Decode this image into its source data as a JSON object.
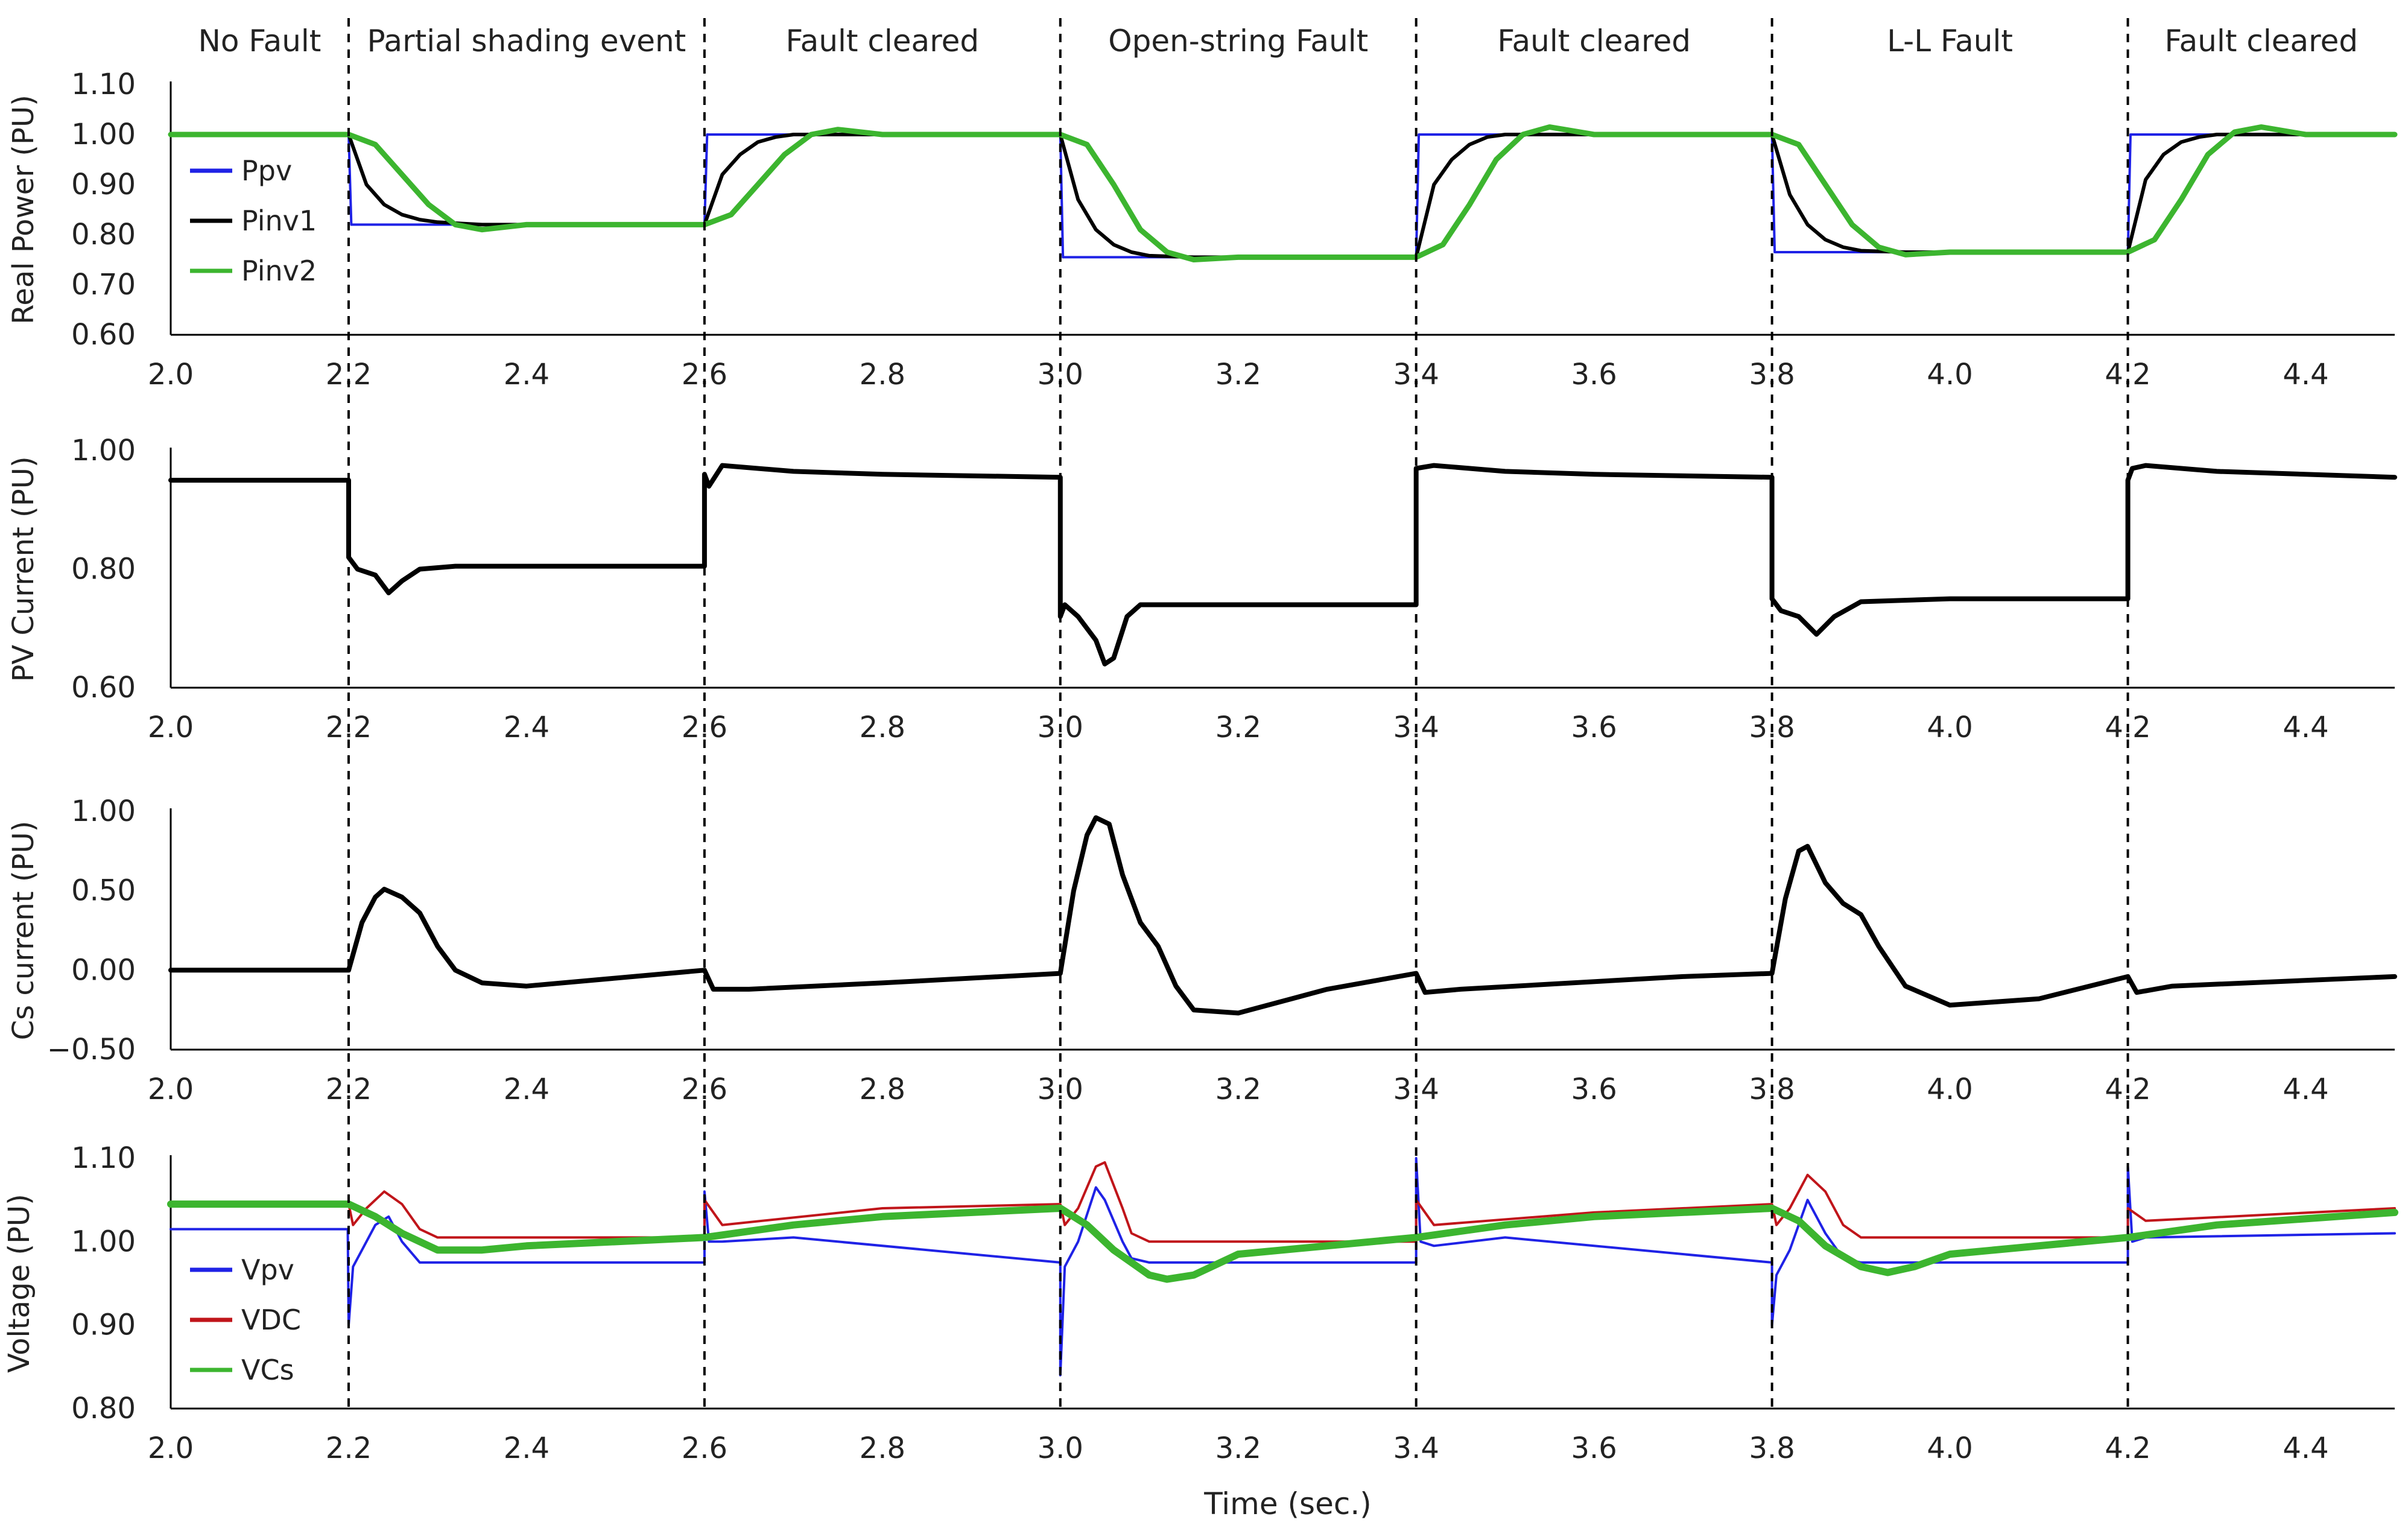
{
  "chart_data": {
    "type": "line",
    "xlabel": "Time (sec.)",
    "xlim": [
      2.0,
      4.5
    ],
    "xticks": [
      "2.0",
      "2.2",
      "2.4",
      "2.6",
      "2.8",
      "3.0",
      "3.2",
      "3.4",
      "3.6",
      "3.8",
      "4.0",
      "4.2",
      "4.4"
    ],
    "event_times": [
      2.2,
      2.6,
      3.0,
      3.4,
      3.8,
      4.2
    ],
    "events": [
      {
        "label": "No Fault",
        "start": 2.0,
        "end": 2.2
      },
      {
        "label": "Partial shading event",
        "start": 2.2,
        "end": 2.6
      },
      {
        "label": "Fault cleared",
        "start": 2.6,
        "end": 3.0
      },
      {
        "label": "Open-string Fault",
        "start": 3.0,
        "end": 3.4
      },
      {
        "label": "Fault cleared",
        "start": 3.4,
        "end": 3.8
      },
      {
        "label": "L-L Fault",
        "start": 3.8,
        "end": 4.2
      },
      {
        "label": "Fault cleared",
        "start": 4.2,
        "end": 4.5
      }
    ],
    "panels": [
      {
        "id": "power",
        "ylabel": "Real Power  (PU)",
        "ylim": [
          0.6,
          1.1
        ],
        "yticks": [
          "0.60",
          "0.70",
          "0.80",
          "0.90",
          "1.00",
          "1.10"
        ],
        "legend_position": "top-left",
        "series": [
          {
            "name": "Ppv",
            "color": "#1f22e6",
            "x": [
              2.0,
              2.2,
              2.203,
              2.6,
              2.603,
              3.0,
              3.003,
              3.4,
              3.403,
              3.8,
              3.803,
              4.2,
              4.203,
              4.5
            ],
            "y": [
              1.0,
              1.0,
              0.82,
              0.82,
              1.0,
              1.0,
              0.755,
              0.755,
              1.0,
              1.0,
              0.765,
              0.765,
              1.0,
              1.0
            ]
          },
          {
            "name": "Pinv1",
            "color": "#000000",
            "x": [
              2.0,
              2.2,
              2.22,
              2.24,
              2.26,
              2.28,
              2.3,
              2.35,
              2.6,
              2.62,
              2.64,
              2.66,
              2.68,
              2.7,
              2.75,
              3.0,
              3.02,
              3.04,
              3.06,
              3.08,
              3.1,
              3.15,
              3.4,
              3.42,
              3.44,
              3.46,
              3.48,
              3.5,
              3.55,
              3.8,
              3.82,
              3.84,
              3.86,
              3.88,
              3.9,
              3.95,
              4.2,
              4.22,
              4.24,
              4.26,
              4.28,
              4.3,
              4.35,
              4.5
            ],
            "y": [
              1.0,
              1.0,
              0.9,
              0.86,
              0.84,
              0.83,
              0.825,
              0.82,
              0.82,
              0.92,
              0.96,
              0.985,
              0.995,
              1.0,
              1.0,
              1.0,
              0.87,
              0.81,
              0.78,
              0.765,
              0.758,
              0.755,
              0.755,
              0.9,
              0.95,
              0.98,
              0.995,
              1.0,
              1.0,
              1.0,
              0.88,
              0.82,
              0.79,
              0.775,
              0.768,
              0.765,
              0.765,
              0.91,
              0.96,
              0.985,
              0.995,
              1.0,
              1.0,
              1.0
            ]
          },
          {
            "name": "Pinv2",
            "color": "#3cb52f",
            "x": [
              2.0,
              2.2,
              2.23,
              2.26,
              2.29,
              2.32,
              2.35,
              2.4,
              2.6,
              2.63,
              2.66,
              2.69,
              2.72,
              2.75,
              2.8,
              3.0,
              3.03,
              3.06,
              3.09,
              3.12,
              3.15,
              3.2,
              3.4,
              3.43,
              3.46,
              3.49,
              3.52,
              3.55,
              3.6,
              3.8,
              3.83,
              3.86,
              3.89,
              3.92,
              3.95,
              4.0,
              4.2,
              4.23,
              4.26,
              4.29,
              4.32,
              4.35,
              4.4,
              4.5
            ],
            "y": [
              1.0,
              1.0,
              0.98,
              0.92,
              0.86,
              0.82,
              0.81,
              0.82,
              0.82,
              0.84,
              0.9,
              0.96,
              1.0,
              1.01,
              1.0,
              1.0,
              0.98,
              0.9,
              0.81,
              0.765,
              0.75,
              0.755,
              0.755,
              0.78,
              0.86,
              0.95,
              1.0,
              1.015,
              1.0,
              1.0,
              0.98,
              0.9,
              0.82,
              0.775,
              0.76,
              0.765,
              0.765,
              0.79,
              0.87,
              0.96,
              1.005,
              1.015,
              1.0,
              1.0
            ]
          }
        ]
      },
      {
        "id": "pv_current",
        "ylabel": "PV Current  (PU)",
        "ylim": [
          0.6,
          1.0
        ],
        "yticks": [
          "0.60",
          "0.80",
          "1.00"
        ],
        "series": [
          {
            "name": "PV Current",
            "color": "#000000",
            "x": [
              2.0,
              2.2,
              2.2,
              2.21,
              2.23,
              2.245,
              2.26,
              2.28,
              2.32,
              2.6,
              2.6,
              2.605,
              2.62,
              2.7,
              2.8,
              3.0,
              3.0,
              3.005,
              3.02,
              3.04,
              3.05,
              3.06,
              3.075,
              3.09,
              3.2,
              3.4,
              3.4,
              3.42,
              3.5,
              3.6,
              3.8,
              3.8,
              3.81,
              3.83,
              3.85,
              3.87,
              3.9,
              4.0,
              4.2,
              4.2,
              4.205,
              4.22,
              4.3,
              4.5
            ],
            "y": [
              0.95,
              0.95,
              0.82,
              0.8,
              0.79,
              0.76,
              0.78,
              0.8,
              0.805,
              0.805,
              0.96,
              0.94,
              0.975,
              0.965,
              0.96,
              0.955,
              0.72,
              0.74,
              0.72,
              0.68,
              0.64,
              0.65,
              0.72,
              0.74,
              0.74,
              0.74,
              0.97,
              0.975,
              0.965,
              0.96,
              0.955,
              0.75,
              0.73,
              0.72,
              0.69,
              0.72,
              0.745,
              0.75,
              0.75,
              0.95,
              0.97,
              0.975,
              0.965,
              0.955
            ]
          }
        ]
      },
      {
        "id": "cs_current",
        "ylabel": "Cs current  (PU)",
        "ylim": [
          -0.5,
          1.0
        ],
        "yticks": [
          "−0.50",
          "0.00",
          "0.50",
          "1.00"
        ],
        "series": [
          {
            "name": "Cs current",
            "color": "#000000",
            "x": [
              2.0,
              2.2,
              2.215,
              2.23,
              2.24,
              2.26,
              2.28,
              2.3,
              2.32,
              2.35,
              2.4,
              2.5,
              2.6,
              2.61,
              2.65,
              2.8,
              3.0,
              3.015,
              3.03,
              3.04,
              3.055,
              3.07,
              3.09,
              3.11,
              3.13,
              3.15,
              3.2,
              3.3,
              3.4,
              3.41,
              3.45,
              3.7,
              3.8,
              3.815,
              3.83,
              3.84,
              3.86,
              3.88,
              3.9,
              3.92,
              3.95,
              4.0,
              4.1,
              4.2,
              4.21,
              4.25,
              4.5
            ],
            "y": [
              0.0,
              0.0,
              0.3,
              0.46,
              0.51,
              0.46,
              0.36,
              0.15,
              0.0,
              -0.08,
              -0.1,
              -0.05,
              0.0,
              -0.12,
              -0.12,
              -0.08,
              -0.02,
              0.5,
              0.85,
              0.96,
              0.92,
              0.6,
              0.3,
              0.15,
              -0.1,
              -0.25,
              -0.27,
              -0.12,
              -0.02,
              -0.14,
              -0.12,
              -0.04,
              -0.02,
              0.45,
              0.75,
              0.78,
              0.55,
              0.42,
              0.35,
              0.15,
              -0.1,
              -0.22,
              -0.18,
              -0.04,
              -0.14,
              -0.1,
              -0.04
            ]
          }
        ]
      },
      {
        "id": "voltage",
        "ylabel": "Voltage  (PU)",
        "ylim": [
          0.8,
          1.1
        ],
        "yticks": [
          "0.80",
          "0.90",
          "1.00",
          "1.10"
        ],
        "legend_position": "bottom-left",
        "series": [
          {
            "name": "Vpv",
            "color": "#1f22e6",
            "x": [
              2.0,
              2.199,
              2.2,
              2.205,
              2.215,
              2.23,
              2.245,
              2.26,
              2.28,
              2.6,
              2.6,
              2.605,
              2.62,
              2.7,
              3.0,
              3.0,
              3.005,
              3.02,
              3.04,
              3.05,
              3.07,
              3.08,
              3.1,
              3.4,
              3.4,
              3.405,
              3.42,
              3.5,
              3.8,
              3.8,
              3.805,
              3.82,
              3.84,
              3.86,
              3.88,
              3.9,
              4.2,
              4.2,
              4.205,
              4.22,
              4.5
            ],
            "y": [
              1.015,
              1.015,
              0.9,
              0.97,
              0.99,
              1.02,
              1.03,
              1.0,
              0.975,
              0.975,
              1.06,
              1.0,
              1.0,
              1.005,
              0.975,
              0.84,
              0.97,
              1.0,
              1.065,
              1.05,
              1.0,
              0.98,
              0.975,
              0.975,
              1.1,
              1.0,
              0.995,
              1.005,
              0.975,
              0.9,
              0.96,
              0.99,
              1.05,
              1.01,
              0.98,
              0.975,
              0.975,
              1.09,
              1.0,
              1.005,
              1.01
            ]
          },
          {
            "name": "VDC",
            "color": "#c0151a",
            "x": [
              2.0,
              2.2,
              2.205,
              2.22,
              2.24,
              2.26,
              2.28,
              2.3,
              2.6,
              2.6,
              2.62,
              2.8,
              3.0,
              3.005,
              3.02,
              3.04,
              3.05,
              3.07,
              3.08,
              3.1,
              3.4,
              3.4,
              3.42,
              3.6,
              3.8,
              3.805,
              3.82,
              3.84,
              3.86,
              3.88,
              3.9,
              4.2,
              4.2,
              4.22,
              4.5
            ],
            "y": [
              1.045,
              1.045,
              1.02,
              1.04,
              1.06,
              1.045,
              1.015,
              1.005,
              1.005,
              1.05,
              1.02,
              1.04,
              1.045,
              1.02,
              1.04,
              1.09,
              1.095,
              1.04,
              1.01,
              1.0,
              1.0,
              1.05,
              1.02,
              1.035,
              1.045,
              1.02,
              1.04,
              1.08,
              1.06,
              1.02,
              1.005,
              1.005,
              1.04,
              1.025,
              1.04
            ]
          },
          {
            "name": "VCs",
            "color": "#3cb52f",
            "x": [
              2.0,
              2.2,
              2.23,
              2.26,
              2.3,
              2.35,
              2.4,
              2.6,
              2.7,
              2.8,
              3.0,
              3.03,
              3.06,
              3.1,
              3.12,
              3.15,
              3.2,
              3.4,
              3.5,
              3.6,
              3.8,
              3.83,
              3.86,
              3.9,
              3.93,
              3.96,
              4.0,
              4.2,
              4.3,
              4.5
            ],
            "y": [
              1.045,
              1.045,
              1.03,
              1.01,
              0.99,
              0.99,
              0.995,
              1.005,
              1.02,
              1.03,
              1.04,
              1.02,
              0.99,
              0.96,
              0.955,
              0.96,
              0.985,
              1.005,
              1.02,
              1.03,
              1.04,
              1.025,
              0.995,
              0.97,
              0.963,
              0.97,
              0.985,
              1.005,
              1.02,
              1.035
            ]
          }
        ]
      }
    ]
  }
}
